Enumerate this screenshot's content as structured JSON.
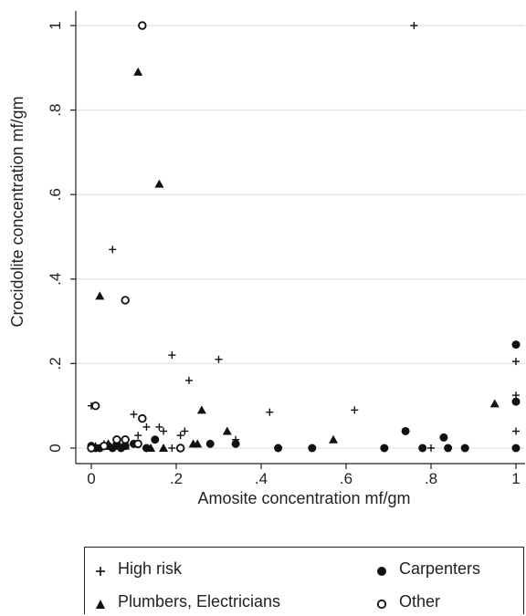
{
  "chart_data": {
    "type": "scatter",
    "xlabel": "Amosite concentration mf/gm",
    "ylabel": "Crocidolite concentration mf/gm",
    "xlim": [
      -0.02,
      1.02
    ],
    "ylim": [
      -0.02,
      1.02
    ],
    "xticks": [
      0,
      0.2,
      0.4,
      0.6,
      0.8,
      1
    ],
    "xtick_labels": [
      "0",
      ".2",
      ".4",
      ".6",
      ".8",
      "1"
    ],
    "yticks": [
      0,
      0.2,
      0.4,
      0.6,
      0.8,
      1
    ],
    "ytick_labels": [
      "0",
      ".2",
      ".4",
      ".6",
      ".8",
      "1"
    ],
    "grid": "horizontal",
    "legend_placement": "bottom",
    "series": [
      {
        "name": "High risk",
        "marker": "plus",
        "points": [
          [
            0.76,
            1.0
          ],
          [
            0.05,
            0.47
          ],
          [
            0.19,
            0.22
          ],
          [
            0.3,
            0.21
          ],
          [
            0.23,
            0.16
          ],
          [
            0.0,
            0.1
          ],
          [
            0.62,
            0.09
          ],
          [
            0.42,
            0.085
          ],
          [
            0.1,
            0.08
          ],
          [
            0.16,
            0.05
          ],
          [
            0.13,
            0.05
          ],
          [
            0.17,
            0.04
          ],
          [
            0.22,
            0.04
          ],
          [
            0.21,
            0.03
          ],
          [
            0.11,
            0.03
          ],
          [
            0.34,
            0.02
          ],
          [
            0.03,
            0.01
          ],
          [
            0.06,
            0.005
          ],
          [
            0.19,
            0.0
          ],
          [
            0.44,
            0.0
          ],
          [
            0.8,
            0.0
          ],
          [
            1.0,
            0.205
          ],
          [
            1.0,
            0.125
          ],
          [
            1.0,
            0.04
          ],
          [
            0.01,
            0.005
          ],
          [
            0.08,
            0.01
          ]
        ]
      },
      {
        "name": "Plumbers, Electricians",
        "marker": "triangle",
        "points": [
          [
            0.11,
            0.89
          ],
          [
            0.16,
            0.625
          ],
          [
            0.02,
            0.36
          ],
          [
            0.26,
            0.09
          ],
          [
            0.32,
            0.04
          ],
          [
            0.57,
            0.02
          ],
          [
            0.95,
            0.105
          ],
          [
            0.24,
            0.01
          ],
          [
            0.25,
            0.01
          ],
          [
            0.06,
            0.015
          ],
          [
            0.03,
            0.005
          ],
          [
            0.04,
            0.01
          ],
          [
            0.14,
            0.0
          ],
          [
            0.17,
            0.0
          ],
          [
            0.08,
            0.005
          ]
        ]
      },
      {
        "name": "Carpenters",
        "marker": "circle-filled",
        "points": [
          [
            1.0,
            0.245
          ],
          [
            1.0,
            0.11
          ],
          [
            0.74,
            0.04
          ],
          [
            0.83,
            0.025
          ],
          [
            0.0,
            0.005
          ],
          [
            0.02,
            0.0
          ],
          [
            0.04,
            0.005
          ],
          [
            0.06,
            0.01
          ],
          [
            0.08,
            0.005
          ],
          [
            0.1,
            0.01
          ],
          [
            0.13,
            0.0
          ],
          [
            0.15,
            0.02
          ],
          [
            0.28,
            0.01
          ],
          [
            0.34,
            0.01
          ],
          [
            0.44,
            0.0
          ],
          [
            0.52,
            0.0
          ],
          [
            0.69,
            0.0
          ],
          [
            0.78,
            0.0
          ],
          [
            0.84,
            0.0
          ],
          [
            0.88,
            0.0
          ],
          [
            1.0,
            0.0
          ],
          [
            0.01,
            0.0
          ],
          [
            0.05,
            0.0
          ],
          [
            0.07,
            0.0
          ]
        ]
      },
      {
        "name": "Other",
        "marker": "circle-open",
        "points": [
          [
            0.12,
            1.0
          ],
          [
            0.08,
            0.35
          ],
          [
            0.01,
            0.1
          ],
          [
            0.12,
            0.07
          ],
          [
            0.06,
            0.02
          ],
          [
            0.08,
            0.02
          ],
          [
            0.11,
            0.01
          ],
          [
            0.21,
            0.0
          ],
          [
            0.03,
            0.005
          ],
          [
            0.0,
            0.0
          ]
        ]
      }
    ]
  },
  "legend": {
    "items": [
      {
        "label": "High risk",
        "marker": "plus"
      },
      {
        "label": "Carpenters",
        "marker": "circle-filled"
      },
      {
        "label": "Plumbers, Electricians",
        "marker": "triangle"
      },
      {
        "label": "Other",
        "marker": "circle-open"
      }
    ]
  },
  "colors": {
    "marker": "#111111",
    "grid": "#e6e6e6",
    "axis": "#222222"
  }
}
